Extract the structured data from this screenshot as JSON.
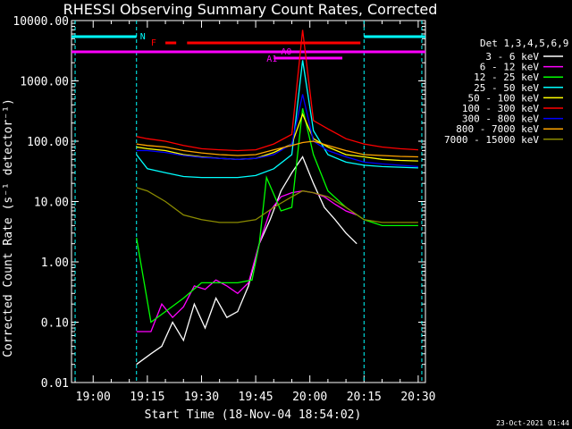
{
  "chart_data": {
    "type": "line",
    "title": "RHESSI Observing Summary Count Rates, Corrected",
    "xlabel": "Start Time (18-Nov-04 18:54:02)",
    "ylabel": "Corrected Count Rate (s⁻¹ detector⁻¹)",
    "y_scale": "log",
    "ylim": [
      0.01,
      10000
    ],
    "xlim": [
      "18:54",
      "20:32"
    ],
    "x_ticks": [
      "19:00",
      "19:15",
      "19:30",
      "19:45",
      "20:00",
      "20:15",
      "20:30"
    ],
    "y_ticks": [
      "10000.00",
      "1000.00",
      "100.00",
      "10.00",
      "1.00",
      "0.10",
      "0.01"
    ],
    "legend_title": "Det 1,3,4,5,6,9",
    "legend_position": "right",
    "footer_date": "23-Oct-2021 01:44",
    "flags": [
      {
        "name": "N",
        "color": "#00ffff"
      },
      {
        "name": "F",
        "color": "#ff0000"
      },
      {
        "name": "A0",
        "color": "#ff00ff"
      },
      {
        "name": "A1",
        "color": "#ff00ff"
      }
    ],
    "series": [
      {
        "name": "3 - 6 keV",
        "color": "#ffffff",
        "x": [
          "19:12",
          "19:16",
          "19:19",
          "19:22",
          "19:25",
          "19:28",
          "19:31",
          "19:34",
          "19:37",
          "19:40",
          "19:43",
          "19:46",
          "19:49",
          "19:52",
          "19:55",
          "19:58",
          "20:01",
          "20:04",
          "20:07",
          "20:10",
          "20:13"
        ],
        "values": [
          0.02,
          0.03,
          0.04,
          0.1,
          0.05,
          0.2,
          0.08,
          0.25,
          0.12,
          0.15,
          0.4,
          2.0,
          5.0,
          15,
          30,
          55,
          20,
          8,
          5,
          3,
          2
        ]
      },
      {
        "name": "6 - 12 keV",
        "color": "#ff00ff",
        "x": [
          "19:12",
          "19:16",
          "19:19",
          "19:22",
          "19:25",
          "19:28",
          "19:31",
          "19:34",
          "19:37",
          "19:40",
          "19:43",
          "19:46",
          "19:49",
          "19:52",
          "19:55",
          "19:58",
          "20:01",
          "20:04",
          "20:07",
          "20:10",
          "20:13"
        ],
        "values": [
          0.07,
          0.07,
          0.2,
          0.12,
          0.18,
          0.4,
          0.35,
          0.5,
          0.4,
          0.3,
          0.45,
          2.0,
          7,
          12,
          14,
          15,
          14,
          12,
          9,
          7,
          6
        ]
      },
      {
        "name": "12 - 25 keV",
        "color": "#00ff00",
        "x": [
          "19:12",
          "19:16",
          "19:20",
          "19:25",
          "19:30",
          "19:35",
          "19:40",
          "19:44",
          "19:46",
          "19:48",
          "19:52",
          "19:55",
          "19:58",
          "20:01",
          "20:05",
          "20:10",
          "20:15",
          "20:20",
          "20:25",
          "20:30"
        ],
        "values": [
          2.5,
          0.1,
          0.15,
          0.25,
          0.45,
          0.45,
          0.45,
          0.5,
          2.0,
          25,
          7,
          8,
          350,
          60,
          15,
          8,
          5,
          4,
          4,
          4
        ]
      },
      {
        "name": "25 - 50 keV",
        "color": "#00ffff",
        "x": [
          "19:12",
          "19:15",
          "19:20",
          "19:25",
          "19:30",
          "19:35",
          "19:40",
          "19:45",
          "19:50",
          "19:55",
          "19:58",
          "20:01",
          "20:05",
          "20:10",
          "20:15",
          "20:20",
          "20:25",
          "20:30"
        ],
        "values": [
          60,
          35,
          30,
          26,
          25,
          25,
          25,
          27,
          35,
          60,
          2200,
          150,
          60,
          45,
          40,
          38,
          37,
          36
        ]
      },
      {
        "name": "50 - 100 keV",
        "color": "#ffff00",
        "x": [
          "19:12",
          "19:15",
          "19:20",
          "19:25",
          "19:30",
          "19:35",
          "19:40",
          "19:45",
          "19:50",
          "19:55",
          "19:58",
          "20:01",
          "20:05",
          "20:10",
          "20:15",
          "20:20",
          "20:25",
          "20:30"
        ],
        "values": [
          80,
          75,
          70,
          60,
          55,
          52,
          50,
          52,
          65,
          90,
          280,
          110,
          80,
          60,
          55,
          50,
          48,
          47
        ]
      },
      {
        "name": "100 - 300 keV",
        "color": "#ff0000",
        "x": [
          "19:12",
          "19:15",
          "19:20",
          "19:25",
          "19:30",
          "19:35",
          "19:40",
          "19:45",
          "19:50",
          "19:55",
          "19:58",
          "20:01",
          "20:05",
          "20:10",
          "20:15",
          "20:20",
          "20:25",
          "20:30"
        ],
        "values": [
          120,
          110,
          100,
          85,
          75,
          72,
          70,
          72,
          90,
          130,
          7000,
          220,
          160,
          110,
          90,
          80,
          75,
          72
        ]
      },
      {
        "name": "300 - 800 keV",
        "color": "#0000ff",
        "x": [
          "19:12",
          "19:15",
          "19:20",
          "19:25",
          "19:30",
          "19:35",
          "19:40",
          "19:45",
          "19:50",
          "19:55",
          "19:58",
          "20:01",
          "20:05",
          "20:10",
          "20:15",
          "20:20",
          "20:25",
          "20:30"
        ],
        "values": [
          70,
          70,
          65,
          58,
          54,
          52,
          50,
          52,
          60,
          90,
          600,
          100,
          70,
          55,
          45,
          42,
          40,
          38
        ]
      },
      {
        "name": "800 - 7000 keV",
        "color": "#ffa500",
        "x": [
          "19:12",
          "19:15",
          "19:20",
          "19:25",
          "19:30",
          "19:35",
          "19:40",
          "19:45",
          "19:50",
          "19:55",
          "19:58",
          "20:01",
          "20:05",
          "20:10",
          "20:15",
          "20:20",
          "20:25",
          "20:30"
        ],
        "values": [
          90,
          85,
          80,
          70,
          64,
          60,
          58,
          60,
          72,
          85,
          95,
          100,
          85,
          70,
          60,
          58,
          56,
          55
        ]
      },
      {
        "name": "7000 - 15000 keV",
        "color": "#8b8b00",
        "x": [
          "19:12",
          "19:15",
          "19:20",
          "19:25",
          "19:30",
          "19:35",
          "19:40",
          "19:45",
          "19:50",
          "19:55",
          "19:58",
          "20:01",
          "20:05",
          "20:10",
          "20:15",
          "20:20",
          "20:25",
          "20:30"
        ],
        "values": [
          17,
          15,
          10,
          6,
          5,
          4.5,
          4.5,
          5,
          8,
          12,
          15,
          14,
          12,
          8,
          5,
          4.5,
          4.5,
          4.5
        ]
      }
    ]
  }
}
